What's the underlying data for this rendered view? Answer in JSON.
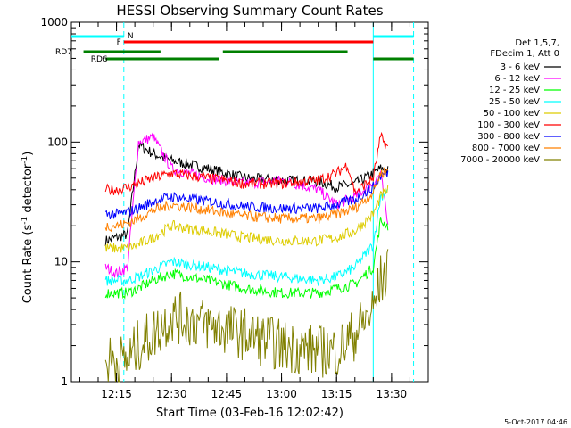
{
  "chart_data": {
    "type": "line",
    "title": "HESSI Observing Summary Count Rates",
    "xlabel": "Start Time (03-Feb-16 12:02:42)",
    "ylabel_main": "Count Rate (s",
    "ylabel_sup1": "-1",
    "ylabel_mid": " detector",
    "ylabel_sup2": "-1",
    "ylabel_end": ")",
    "yscale": "log",
    "ylim": [
      1,
      1000
    ],
    "xlim_minutes": [
      "12:02:42",
      "13:40:00"
    ],
    "x_ticks": [
      "12:15",
      "12:30",
      "12:45",
      "13:00",
      "13:15",
      "13:30"
    ],
    "y_ticks": [
      "1",
      "10",
      "100",
      "1000"
    ],
    "y_tick_values": [
      1,
      10,
      100,
      1000
    ],
    "x_tick_values": [
      "12:15",
      "12:30",
      "12:45",
      "13:00",
      "13:15",
      "13:30"
    ],
    "legend_header": [
      "Det 1,5,7,",
      "FDecim 1, Att 0"
    ],
    "series": [
      {
        "name": "3 - 6 keV",
        "color": "#000000",
        "x": [
          "12:12",
          "12:15",
          "12:18",
          "12:21",
          "12:25",
          "12:30",
          "12:40",
          "12:50",
          "13:00",
          "13:10",
          "13:15",
          "13:20",
          "13:25",
          "13:27",
          "13:29"
        ],
        "values": [
          15,
          16,
          17,
          95,
          80,
          70,
          60,
          50,
          48,
          47,
          42,
          45,
          55,
          60,
          58
        ]
      },
      {
        "name": "6 - 12 keV",
        "color": "#ff00ff",
        "x": [
          "12:12",
          "12:15",
          "12:18",
          "12:21",
          "12:25",
          "12:30",
          "12:40",
          "12:50",
          "13:00",
          "13:10",
          "13:15",
          "13:20",
          "13:25",
          "13:27",
          "13:29"
        ],
        "values": [
          9,
          8,
          9,
          100,
          110,
          60,
          50,
          45,
          48,
          40,
          30,
          35,
          45,
          55,
          20
        ]
      },
      {
        "name": "12 - 25 keV",
        "color": "#00ff00",
        "x": [
          "12:12",
          "12:15",
          "12:18",
          "12:21",
          "12:25",
          "12:30",
          "12:40",
          "12:50",
          "13:00",
          "13:10",
          "13:15",
          "13:20",
          "13:25",
          "13:27",
          "13:29"
        ],
        "values": [
          5.5,
          5.5,
          5.5,
          6,
          7,
          8,
          7,
          6,
          5.5,
          5.5,
          6,
          6.5,
          9,
          22,
          20
        ]
      },
      {
        "name": "25 - 50 keV",
        "color": "#00ffff",
        "x": [
          "12:12",
          "12:15",
          "12:18",
          "12:21",
          "12:25",
          "12:30",
          "12:40",
          "12:50",
          "13:00",
          "13:10",
          "13:15",
          "13:20",
          "13:25",
          "13:27",
          "13:29"
        ],
        "values": [
          7,
          7,
          7,
          7.5,
          8.5,
          10,
          9,
          8,
          7.5,
          7,
          7.5,
          9,
          14,
          35,
          40
        ]
      },
      {
        "name": "50 - 100 keV",
        "color": "#ddcc00",
        "x": [
          "12:12",
          "12:15",
          "12:18",
          "12:21",
          "12:25",
          "12:30",
          "12:40",
          "12:50",
          "13:00",
          "13:10",
          "13:15",
          "13:20",
          "13:25",
          "13:27",
          "13:29"
        ],
        "values": [
          13,
          13,
          13,
          14,
          16,
          20,
          18,
          16,
          15,
          15,
          16,
          18,
          25,
          35,
          40
        ]
      },
      {
        "name": "100 - 300 keV",
        "color": "#ff0000",
        "x": [
          "12:12",
          "12:15",
          "12:18",
          "12:21",
          "12:25",
          "12:30",
          "12:40",
          "12:50",
          "13:00",
          "13:10",
          "13:15",
          "13:18",
          "13:20",
          "13:25",
          "13:27",
          "13:29"
        ],
        "values": [
          40,
          40,
          42,
          45,
          50,
          55,
          50,
          45,
          45,
          48,
          55,
          65,
          38,
          50,
          110,
          90
        ]
      },
      {
        "name": "300 - 800 keV",
        "color": "#0000ff",
        "x": [
          "12:12",
          "12:15",
          "12:18",
          "12:21",
          "12:25",
          "12:30",
          "12:40",
          "12:50",
          "13:00",
          "13:10",
          "13:15",
          "13:20",
          "13:25",
          "13:27",
          "13:29"
        ],
        "values": [
          25,
          25,
          26,
          28,
          32,
          35,
          32,
          29,
          28,
          28,
          30,
          33,
          42,
          52,
          55
        ]
      },
      {
        "name": "800 - 7000 keV",
        "color": "#ff8000",
        "x": [
          "12:12",
          "12:15",
          "12:18",
          "12:21",
          "12:25",
          "12:30",
          "12:40",
          "12:50",
          "13:00",
          "13:10",
          "13:15",
          "13:20",
          "13:25",
          "13:27",
          "13:29"
        ],
        "values": [
          20,
          20,
          21,
          23,
          27,
          30,
          27,
          24,
          23,
          23,
          25,
          28,
          38,
          55,
          58
        ]
      },
      {
        "name": "7000 - 20000 keV",
        "color": "#808000",
        "x": [
          "12:12",
          "12:15",
          "12:18",
          "12:21",
          "12:25",
          "12:30",
          "12:40",
          "12:50",
          "13:00",
          "13:10",
          "13:15",
          "13:20",
          "13:25",
          "13:27",
          "13:29"
        ],
        "values": [
          1.5,
          1.5,
          1.5,
          2,
          2.5,
          3.5,
          3,
          2.5,
          2,
          1.8,
          1.8,
          2.5,
          4,
          7,
          8
        ]
      }
    ],
    "flags": [
      {
        "label": "N",
        "color": "#00ffff"
      },
      {
        "label": "F",
        "color": "#ff0000"
      },
      {
        "label": "RD7",
        "color": "#008000"
      },
      {
        "label": "RD6",
        "color": "#008000"
      }
    ]
  },
  "footer_timestamp": "5-Oct-2017 04:46"
}
